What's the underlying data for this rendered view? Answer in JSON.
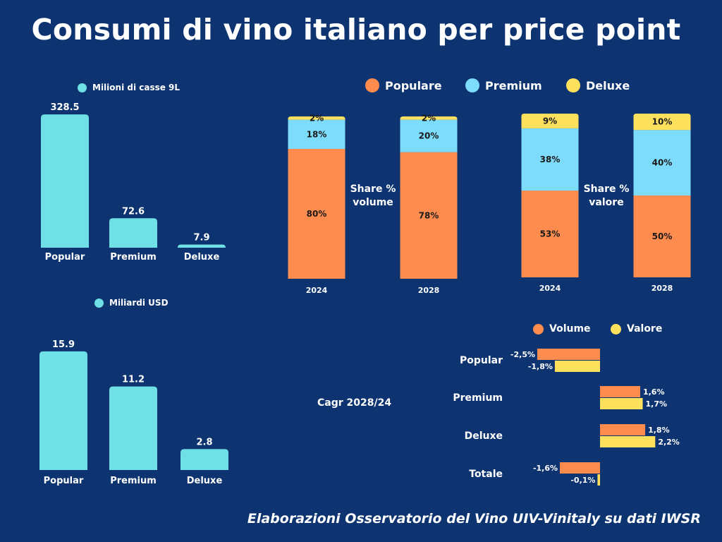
{
  "title": "Consumi di vino italiano per price point",
  "footer": "Elaborazioni Osservatorio del Vino UIV-Vinitaly su dati IWSR",
  "colors": {
    "background": "#0d3471",
    "cyan": "#6fe1e6",
    "populare": "#fd8c4e",
    "premium": "#7ddbfb",
    "deluxe": "#fde15d",
    "text_dark": "#1a1a1a"
  },
  "chart_data": [
    {
      "type": "bar",
      "legend": "Milioni di casse 9L",
      "categories": [
        "Popular",
        "Premium",
        "Deluxe"
      ],
      "values": [
        328.5,
        72.6,
        7.9
      ],
      "value_labels": [
        "328.5",
        "72.6",
        "7.9"
      ]
    },
    {
      "type": "bar",
      "legend": "Miliardi USD",
      "categories": [
        "Popular",
        "Premium",
        "Deluxe"
      ],
      "values": [
        15.9,
        11.2,
        2.8
      ],
      "value_labels": [
        "15.9",
        "11.2",
        "2.8"
      ]
    },
    {
      "type": "bar",
      "stacked": true,
      "label": "Share % volume",
      "label_lines": [
        "Share %",
        "volume"
      ],
      "categories": [
        "2024",
        "2028"
      ],
      "series": [
        {
          "name": "Populare",
          "values": [
            80,
            78
          ],
          "labels": [
            "80%",
            "78%"
          ]
        },
        {
          "name": "Premium",
          "values": [
            18,
            20
          ],
          "labels": [
            "18%",
            "20%"
          ]
        },
        {
          "name": "Deluxe",
          "values": [
            2,
            2
          ],
          "labels": [
            "2%",
            "2%"
          ]
        }
      ]
    },
    {
      "type": "bar",
      "stacked": true,
      "label": "Share % valore",
      "label_lines": [
        "Share %",
        "valore"
      ],
      "categories": [
        "2024",
        "2028"
      ],
      "series": [
        {
          "name": "Populare",
          "values": [
            53,
            50
          ],
          "labels": [
            "53%",
            "50%"
          ]
        },
        {
          "name": "Premium",
          "values": [
            38,
            40
          ],
          "labels": [
            "38%",
            "40%"
          ]
        },
        {
          "name": "Deluxe",
          "values": [
            9,
            10
          ],
          "labels": [
            "9%",
            "10%"
          ]
        }
      ]
    },
    {
      "type": "bar",
      "orientation": "horizontal",
      "label": "Cagr 2028/24",
      "categories": [
        "Popular",
        "Premium",
        "Deluxe",
        "Totale"
      ],
      "series": [
        {
          "name": "Volume",
          "values": [
            -2.5,
            1.6,
            1.8,
            -1.6
          ],
          "labels": [
            "-2,5%",
            "1,6%",
            "1,8%",
            "-1,6%"
          ]
        },
        {
          "name": "Valore",
          "values": [
            -1.8,
            1.7,
            2.2,
            -0.1
          ],
          "labels": [
            "-1,8%",
            "1,7%",
            "2,2%",
            "-0,1%"
          ]
        }
      ]
    }
  ],
  "stack_legend": [
    "Populare",
    "Premium",
    "Deluxe"
  ]
}
